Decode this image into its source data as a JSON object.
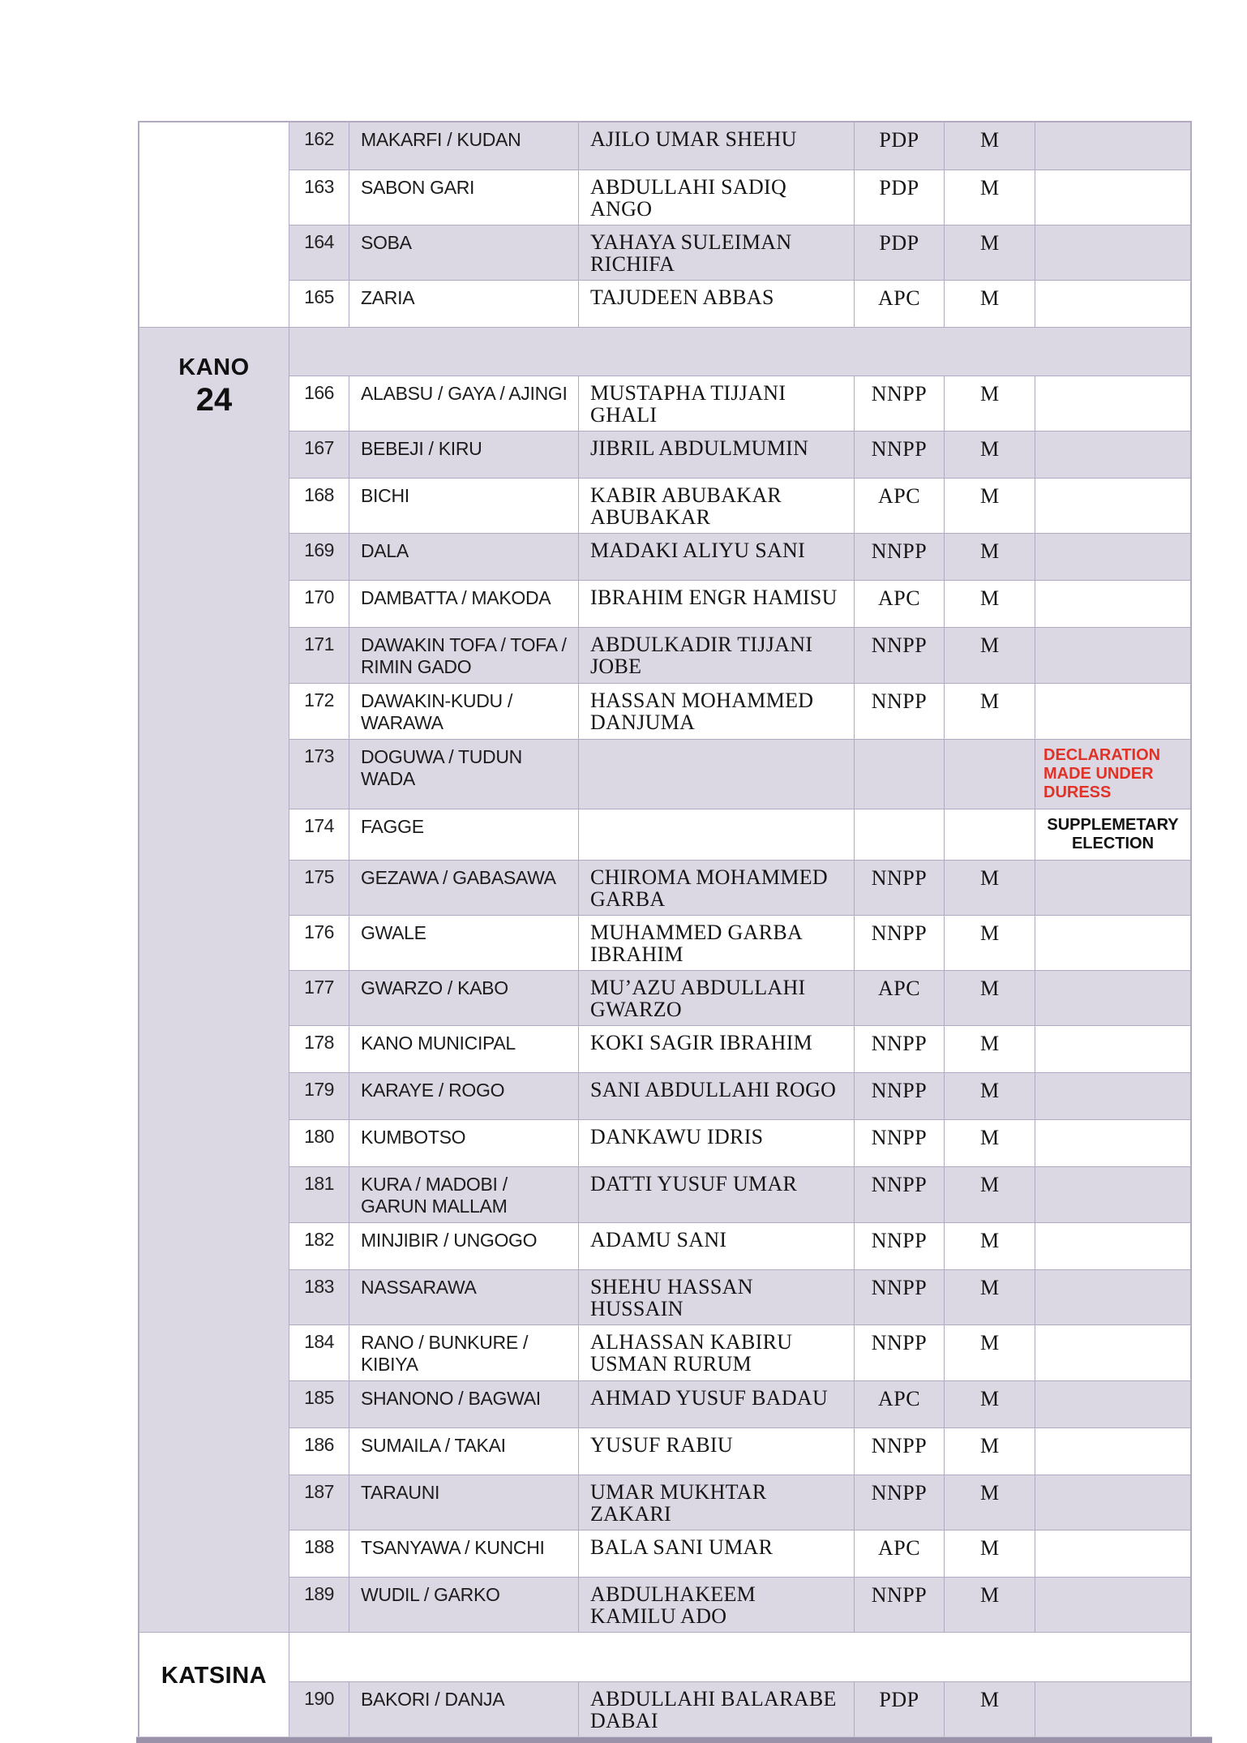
{
  "colors": {
    "row_shade": "#dbd8e4",
    "grid_line": "#b2a9c3",
    "bottom_rule": "#9a92a9",
    "duress_red": "#e03227"
  },
  "table": {
    "sections": [
      {
        "state_label": "",
        "state_number": "",
        "state_bg": "white",
        "spacer_row": false,
        "spacer_bg": "white",
        "rows": [
          {
            "sn": "162",
            "constituency": "MAKARFI / KUDAN",
            "candidate": "AJILO UMAR SHEHU",
            "party": "PDP",
            "gender": "M",
            "remark": "",
            "remark_style": "",
            "bg": "lavender"
          },
          {
            "sn": "163",
            "constituency": "SABON GARI",
            "candidate": "ABDULLAHI SADIQ ANGO",
            "party": "PDP",
            "gender": "M",
            "remark": "",
            "remark_style": "",
            "bg": "white"
          },
          {
            "sn": "164",
            "constituency": "SOBA",
            "candidate": "YAHAYA SULEIMAN RICHIFA",
            "party": "PDP",
            "gender": "M",
            "remark": "",
            "remark_style": "",
            "bg": "lavender"
          },
          {
            "sn": "165",
            "constituency": "ZARIA",
            "candidate": "TAJUDEEN ABBAS",
            "party": "APC",
            "gender": "M",
            "remark": "",
            "remark_style": "",
            "bg": "white"
          }
        ]
      },
      {
        "state_label": "KANO",
        "state_number": "24",
        "state_bg": "lavender",
        "spacer_row": true,
        "spacer_bg": "lavender",
        "rows": [
          {
            "sn": "166",
            "constituency": "ALABSU / GAYA / AJINGI",
            "candidate": "MUSTAPHA TIJJANI GHALI",
            "party": "NNPP",
            "gender": "M",
            "remark": "",
            "remark_style": "",
            "bg": "white"
          },
          {
            "sn": "167",
            "constituency": "BEBEJI / KIRU",
            "candidate": "JIBRIL ABDULMUMIN",
            "party": "NNPP",
            "gender": "M",
            "remark": "",
            "remark_style": "",
            "bg": "lavender"
          },
          {
            "sn": "168",
            "constituency": "BICHI",
            "candidate": "KABIR ABUBAKAR ABUBAKAR",
            "party": "APC",
            "gender": "M",
            "remark": "",
            "remark_style": "",
            "bg": "white"
          },
          {
            "sn": "169",
            "constituency": "DALA",
            "candidate": "MADAKI ALIYU SANI",
            "party": "NNPP",
            "gender": "M",
            "remark": "",
            "remark_style": "",
            "bg": "lavender"
          },
          {
            "sn": "170",
            "constituency": "DAMBATTA / MAKODA",
            "candidate": "IBRAHIM ENGR HAMISU",
            "party": "APC",
            "gender": "M",
            "remark": "",
            "remark_style": "",
            "bg": "white"
          },
          {
            "sn": "171",
            "constituency": "DAWAKIN TOFA / TOFA / RIMIN GADO",
            "candidate": "ABDULKADIR TIJJANI JOBE",
            "party": "NNPP",
            "gender": "M",
            "remark": "",
            "remark_style": "",
            "bg": "lavender"
          },
          {
            "sn": "172",
            "constituency": "DAWAKIN-KUDU / WARAWA",
            "candidate": "HASSAN MOHAMMED DANJUMA",
            "party": "NNPP",
            "gender": "M",
            "remark": "",
            "remark_style": "",
            "bg": "white"
          },
          {
            "sn": "173",
            "constituency": "DOGUWA / TUDUN WADA",
            "candidate": "",
            "party": "",
            "gender": "",
            "remark": "DECLARATION MADE UNDER DURESS",
            "remark_style": "duress",
            "bg": "lavender"
          },
          {
            "sn": "174",
            "constituency": "FAGGE",
            "candidate": "",
            "party": "",
            "gender": "",
            "remark": "SUPPLEMETARY ELECTION",
            "remark_style": "supplementary",
            "bg": "white"
          },
          {
            "sn": "175",
            "constituency": "GEZAWA / GABASAWA",
            "candidate": "CHIROMA MOHAMMED GARBA",
            "party": "NNPP",
            "gender": "M",
            "remark": "",
            "remark_style": "",
            "bg": "lavender"
          },
          {
            "sn": "176",
            "constituency": "GWALE",
            "candidate": "MUHAMMED GARBA IBRAHIM",
            "party": "NNPP",
            "gender": "M",
            "remark": "",
            "remark_style": "",
            "bg": "white"
          },
          {
            "sn": "177",
            "constituency": "GWARZO / KABO",
            "candidate": "MU’AZU ABDULLAHI GWARZO",
            "party": "APC",
            "gender": "M",
            "remark": "",
            "remark_style": "",
            "bg": "lavender"
          },
          {
            "sn": "178",
            "constituency": "KANO MUNICIPAL",
            "candidate": "KOKI SAGIR IBRAHIM",
            "party": "NNPP",
            "gender": "M",
            "remark": "",
            "remark_style": "",
            "bg": "white"
          },
          {
            "sn": "179",
            "constituency": "KARAYE / ROGO",
            "candidate": "SANI ABDULLAHI ROGO",
            "party": "NNPP",
            "gender": "M",
            "remark": "",
            "remark_style": "",
            "bg": "lavender"
          },
          {
            "sn": "180",
            "constituency": "KUMBOTSO",
            "candidate": "DANKAWU IDRIS",
            "party": "NNPP",
            "gender": "M",
            "remark": "",
            "remark_style": "",
            "bg": "white"
          },
          {
            "sn": "181",
            "constituency": "KURA / MADOBI / GARUN MALLAM",
            "candidate": "DATTI YUSUF UMAR",
            "party": "NNPP",
            "gender": "M",
            "remark": "",
            "remark_style": "",
            "bg": "lavender"
          },
          {
            "sn": "182",
            "constituency": "MINJIBIR / UNGOGO",
            "candidate": "ADAMU SANI",
            "party": "NNPP",
            "gender": "M",
            "remark": "",
            "remark_style": "",
            "bg": "white"
          },
          {
            "sn": "183",
            "constituency": "NASSARAWA",
            "candidate": "SHEHU HASSAN HUSSAIN",
            "party": "NNPP",
            "gender": "M",
            "remark": "",
            "remark_style": "",
            "bg": "lavender"
          },
          {
            "sn": "184",
            "constituency": "RANO / BUNKURE / KIBIYA",
            "candidate": "ALHASSAN KABIRU USMAN RURUM",
            "party": "NNPP",
            "gender": "M",
            "remark": "",
            "remark_style": "",
            "bg": "white"
          },
          {
            "sn": "185",
            "constituency": "SHANONO / BAGWAI",
            "candidate": "AHMAD YUSUF BADAU",
            "party": "APC",
            "gender": "M",
            "remark": "",
            "remark_style": "",
            "bg": "lavender"
          },
          {
            "sn": "186",
            "constituency": "SUMAILA / TAKAI",
            "candidate": "YUSUF RABIU",
            "party": "NNPP",
            "gender": "M",
            "remark": "",
            "remark_style": "",
            "bg": "white"
          },
          {
            "sn": "187",
            "constituency": "TARAUNI",
            "candidate": "UMAR MUKHTAR ZAKARI",
            "party": "NNPP",
            "gender": "M",
            "remark": "",
            "remark_style": "",
            "bg": "lavender"
          },
          {
            "sn": "188",
            "constituency": "TSANYAWA / KUNCHI",
            "candidate": "BALA SANI UMAR",
            "party": "APC",
            "gender": "M",
            "remark": "",
            "remark_style": "",
            "bg": "white"
          },
          {
            "sn": "189",
            "constituency": "WUDIL / GARKO",
            "candidate": "ABDULHAKEEM KAMILU ADO",
            "party": "NNPP",
            "gender": "M",
            "remark": "",
            "remark_style": "",
            "bg": "lavender"
          }
        ]
      },
      {
        "state_label": "KATSINA",
        "state_number": "",
        "state_bg": "white",
        "spacer_row": true,
        "spacer_bg": "white",
        "rows": [
          {
            "sn": "190",
            "constituency": "BAKORI / DANJA",
            "candidate": "ABDULLAHI BALARABE DABAI",
            "party": "PDP",
            "gender": "M",
            "remark": "",
            "remark_style": "",
            "bg": "lavender"
          }
        ]
      }
    ]
  }
}
